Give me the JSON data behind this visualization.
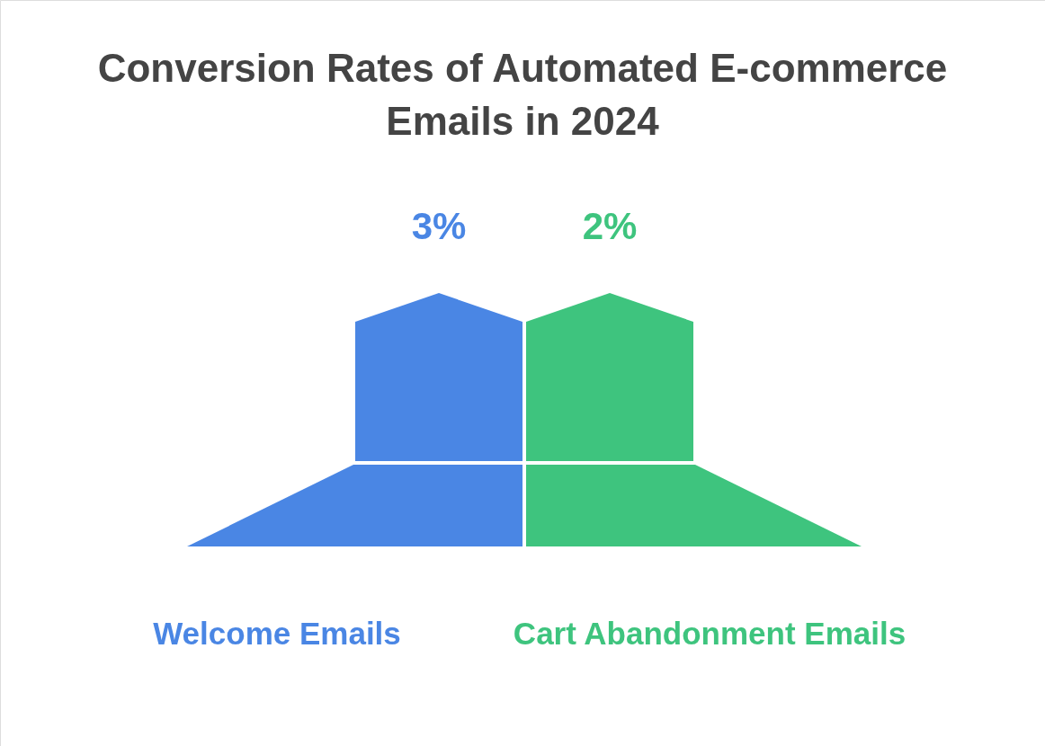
{
  "chart_data": {
    "type": "other",
    "title": "Conversion Rates of Automated E-commerce Emails in 2024",
    "categories": [
      "Welcome Emails",
      "Cart Abandonment Emails"
    ],
    "values": [
      3,
      2
    ],
    "value_labels": [
      "3%",
      "2%"
    ],
    "colors": [
      "#4a86e4",
      "#3ec47e"
    ]
  }
}
